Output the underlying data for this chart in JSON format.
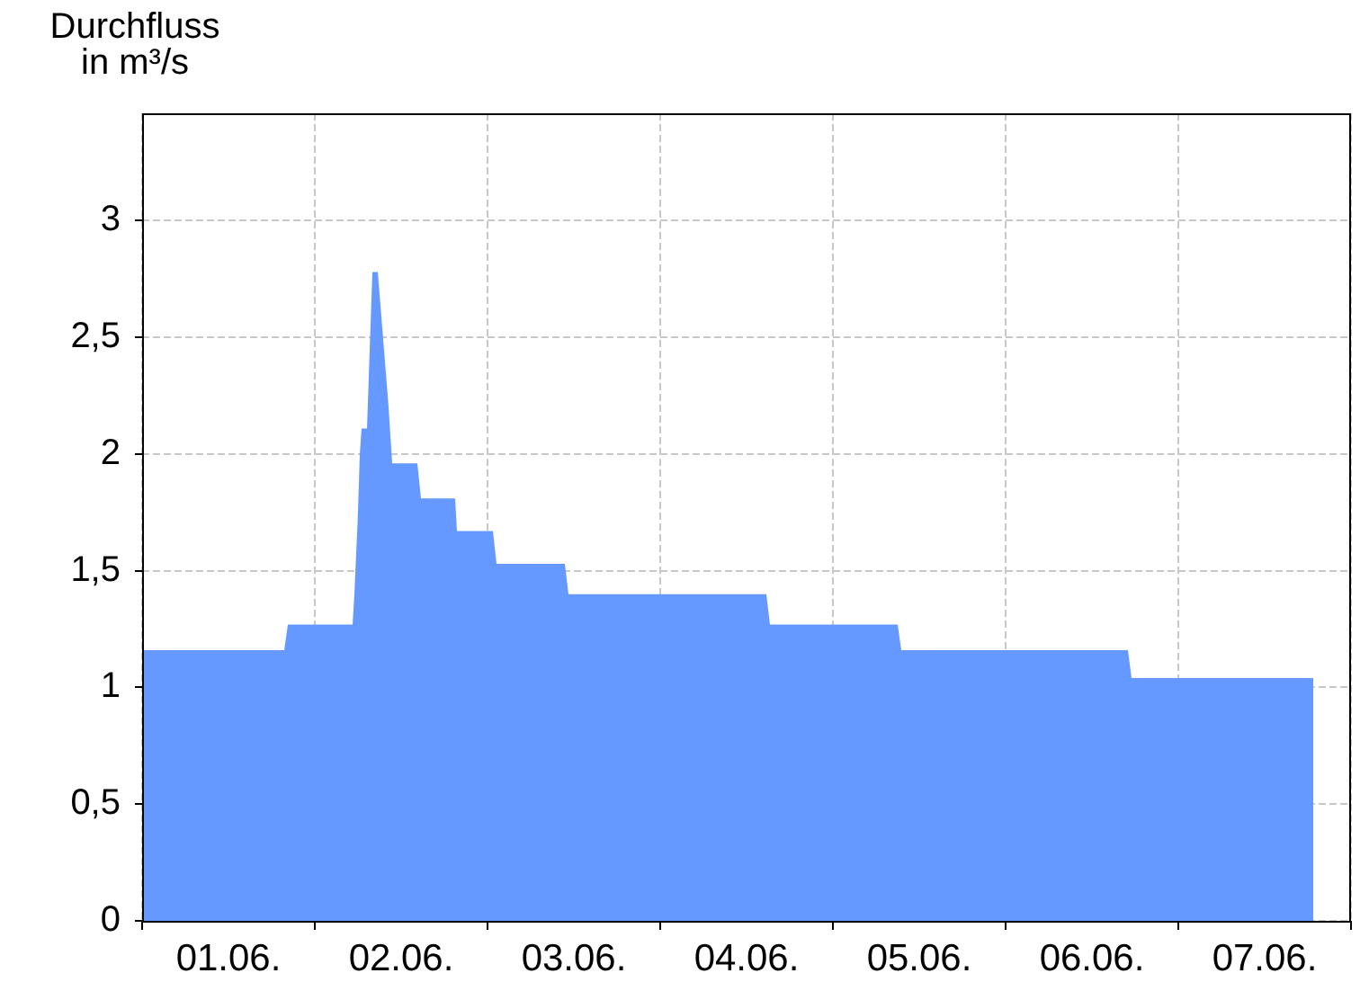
{
  "chart_data": {
    "type": "area",
    "ylabel": "Durchfluss in m³/s",
    "x": [
      "--06-01T00:00",
      "--06-01T19:45",
      "--06-01T20:15",
      "--06-02T05:15",
      "--06-02T05:30",
      "--06-02T06:00",
      "--06-02T06:15",
      "--06-02T06:30",
      "--06-02T07:15",
      "--06-02T08:00",
      "--06-02T08:45",
      "--06-02T10:00",
      "--06-02T10:15",
      "--06-02T10:45",
      "--06-02T14:15",
      "--06-02T14:45",
      "--06-02T19:30",
      "--06-02T19:45",
      "--06-03T00:45",
      "--06-03T01:15",
      "--06-03T10:45",
      "--06-03T11:15",
      "--06-04T14:45",
      "--06-04T15:15",
      "--06-05T09:00",
      "--06-05T09:30",
      "--06-06T17:00",
      "--06-06T17:30",
      "--06-07T18:45"
    ],
    "series": [
      {
        "color": "#6699ff",
        "values": [
          1.16,
          1.16,
          1.27,
          1.27,
          1.4,
          1.75,
          2.0,
          2.11,
          2.11,
          2.78,
          2.78,
          2.3,
          2.2,
          1.96,
          1.96,
          1.81,
          1.81,
          1.67,
          1.67,
          1.53,
          1.53,
          1.4,
          1.4,
          1.27,
          1.27,
          1.16,
          1.16,
          1.04,
          1.04
        ]
      }
    ],
    "xlim": [
      "--06-01T00:00",
      "--06-08T00:00"
    ],
    "xticks": [
      {
        "value": "--06-01T00:00",
        "label": null
      },
      {
        "value": "--06-01T12:00",
        "label": "01.06."
      },
      {
        "value": "--06-02T00:00",
        "label": null
      },
      {
        "value": "--06-02T12:00",
        "label": "02.06."
      },
      {
        "value": "--06-03T00:00",
        "label": null
      },
      {
        "value": "--06-03T12:00",
        "label": "03.06."
      },
      {
        "value": "--06-04T00:00",
        "label": null
      },
      {
        "value": "--06-04T12:00",
        "label": "04.06."
      },
      {
        "value": "--06-05T00:00",
        "label": null
      },
      {
        "value": "--06-05T12:00",
        "label": "05.06."
      },
      {
        "value": "--06-06T00:00",
        "label": null
      },
      {
        "value": "--06-06T12:00",
        "label": "06.06."
      },
      {
        "value": "--06-07T00:00",
        "label": null
      },
      {
        "value": "--06-07T12:00",
        "label": "07.06."
      },
      {
        "value": "--06-08T00:00",
        "label": null
      }
    ],
    "ylim": [
      0,
      3.46
    ],
    "yticks": [
      0,
      {
        "value": 0.5,
        "label": "0,5"
      },
      1,
      {
        "value": 1.5,
        "label": "1,5"
      },
      2,
      {
        "value": 2.5,
        "label": "2,5"
      },
      3
    ],
    "grid": true
  }
}
